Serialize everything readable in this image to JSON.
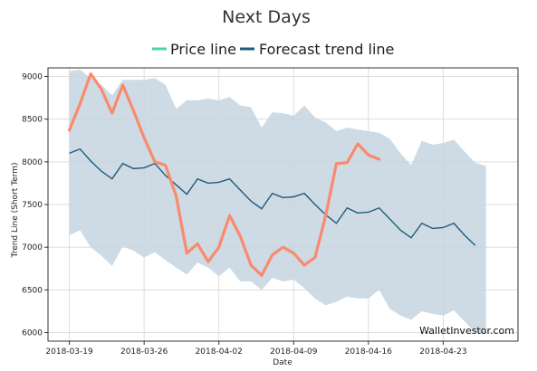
{
  "chart_data": {
    "type": "line",
    "title": "Next Days",
    "xlabel": "Date",
    "ylabel": "Trend Line (Short Term)",
    "watermark": "WalletInvestor.com",
    "xlim": [
      "2018-03-17",
      "2018-04-30"
    ],
    "ylim": [
      5900,
      9100
    ],
    "yticks": [
      6000,
      6500,
      7000,
      7500,
      8000,
      8500,
      9000
    ],
    "xticks": [
      "2018-03-19",
      "2018-03-26",
      "2018-04-02",
      "2018-04-09",
      "2018-04-16",
      "2018-04-23"
    ],
    "grid": true,
    "legend_position": "top-center",
    "colors": {
      "price": "#fa8a6e",
      "price_legend": "#4fd1b5",
      "forecast": "#1f5b7e",
      "band": "#c5d5e0",
      "grid": "#dddddd",
      "frame": "#333333"
    },
    "series": [
      {
        "name": "Price line",
        "x": [
          "2018-03-19",
          "2018-03-20",
          "2018-03-21",
          "2018-03-22",
          "2018-03-23",
          "2018-03-24",
          "2018-03-25",
          "2018-03-26",
          "2018-03-27",
          "2018-03-28",
          "2018-03-29",
          "2018-03-30",
          "2018-03-31",
          "2018-04-01",
          "2018-04-02",
          "2018-04-03",
          "2018-04-04",
          "2018-04-05",
          "2018-04-06",
          "2018-04-07",
          "2018-04-08",
          "2018-04-09",
          "2018-04-10",
          "2018-04-11",
          "2018-04-12",
          "2018-04-13",
          "2018-04-14",
          "2018-04-15",
          "2018-04-16",
          "2018-04-17"
        ],
        "values": [
          8370,
          8680,
          9030,
          8850,
          8570,
          8900,
          8600,
          8280,
          8000,
          7960,
          7600,
          6930,
          7040,
          6830,
          7000,
          7370,
          7130,
          6790,
          6670,
          6910,
          7000,
          6930,
          6790,
          6880,
          7370,
          7980,
          7990,
          8210,
          8080,
          8030
        ]
      },
      {
        "name": "Forecast trend line",
        "x": [
          "2018-03-19",
          "2018-03-20",
          "2018-03-21",
          "2018-03-22",
          "2018-03-23",
          "2018-03-24",
          "2018-03-25",
          "2018-03-26",
          "2018-03-27",
          "2018-03-28",
          "2018-03-29",
          "2018-03-30",
          "2018-03-31",
          "2018-04-01",
          "2018-04-02",
          "2018-04-03",
          "2018-04-04",
          "2018-04-05",
          "2018-04-06",
          "2018-04-07",
          "2018-04-08",
          "2018-04-09",
          "2018-04-10",
          "2018-04-11",
          "2018-04-12",
          "2018-04-13",
          "2018-04-14",
          "2018-04-15",
          "2018-04-16",
          "2018-04-17",
          "2018-04-18",
          "2018-04-19",
          "2018-04-20",
          "2018-04-21",
          "2018-04-22",
          "2018-04-23",
          "2018-04-24",
          "2018-04-25",
          "2018-04-26"
        ],
        "values": [
          8100,
          8150,
          8010,
          7890,
          7800,
          7980,
          7920,
          7930,
          7980,
          7840,
          7730,
          7620,
          7800,
          7750,
          7760,
          7800,
          7670,
          7540,
          7450,
          7630,
          7580,
          7590,
          7630,
          7500,
          7380,
          7280,
          7460,
          7400,
          7410,
          7460,
          7330,
          7200,
          7110,
          7280,
          7220,
          7230,
          7280,
          7140,
          7020
        ]
      }
    ],
    "band": {
      "x": [
        "2018-03-19",
        "2018-03-20",
        "2018-03-21",
        "2018-03-22",
        "2018-03-23",
        "2018-03-24",
        "2018-03-25",
        "2018-03-26",
        "2018-03-27",
        "2018-03-28",
        "2018-03-29",
        "2018-03-30",
        "2018-03-31",
        "2018-04-01",
        "2018-04-02",
        "2018-04-03",
        "2018-04-04",
        "2018-04-05",
        "2018-04-06",
        "2018-04-07",
        "2018-04-08",
        "2018-04-09",
        "2018-04-10",
        "2018-04-11",
        "2018-04-12",
        "2018-04-13",
        "2018-04-14",
        "2018-04-15",
        "2018-04-16",
        "2018-04-17",
        "2018-04-18",
        "2018-04-19",
        "2018-04-20",
        "2018-04-21",
        "2018-04-22",
        "2018-04-23",
        "2018-04-24",
        "2018-04-25",
        "2018-04-26",
        "2018-04-27"
      ],
      "upper": [
        9060,
        9080,
        8980,
        8900,
        8780,
        8960,
        8960,
        8960,
        8980,
        8900,
        8620,
        8720,
        8720,
        8740,
        8720,
        8760,
        8660,
        8640,
        8400,
        8580,
        8570,
        8540,
        8660,
        8520,
        8460,
        8360,
        8400,
        8380,
        8360,
        8340,
        8270,
        8100,
        7960,
        8250,
        8200,
        8220,
        8260,
        8120,
        7990,
        7950
      ],
      "lower": [
        7140,
        7200,
        7000,
        6900,
        6780,
        7010,
        6960,
        6880,
        6940,
        6850,
        6760,
        6680,
        6820,
        6760,
        6660,
        6760,
        6600,
        6600,
        6500,
        6640,
        6600,
        6620,
        6520,
        6400,
        6320,
        6360,
        6420,
        6400,
        6400,
        6500,
        6280,
        6200,
        6150,
        6250,
        6220,
        6200,
        6260,
        6130,
        6000,
        5980
      ]
    }
  }
}
